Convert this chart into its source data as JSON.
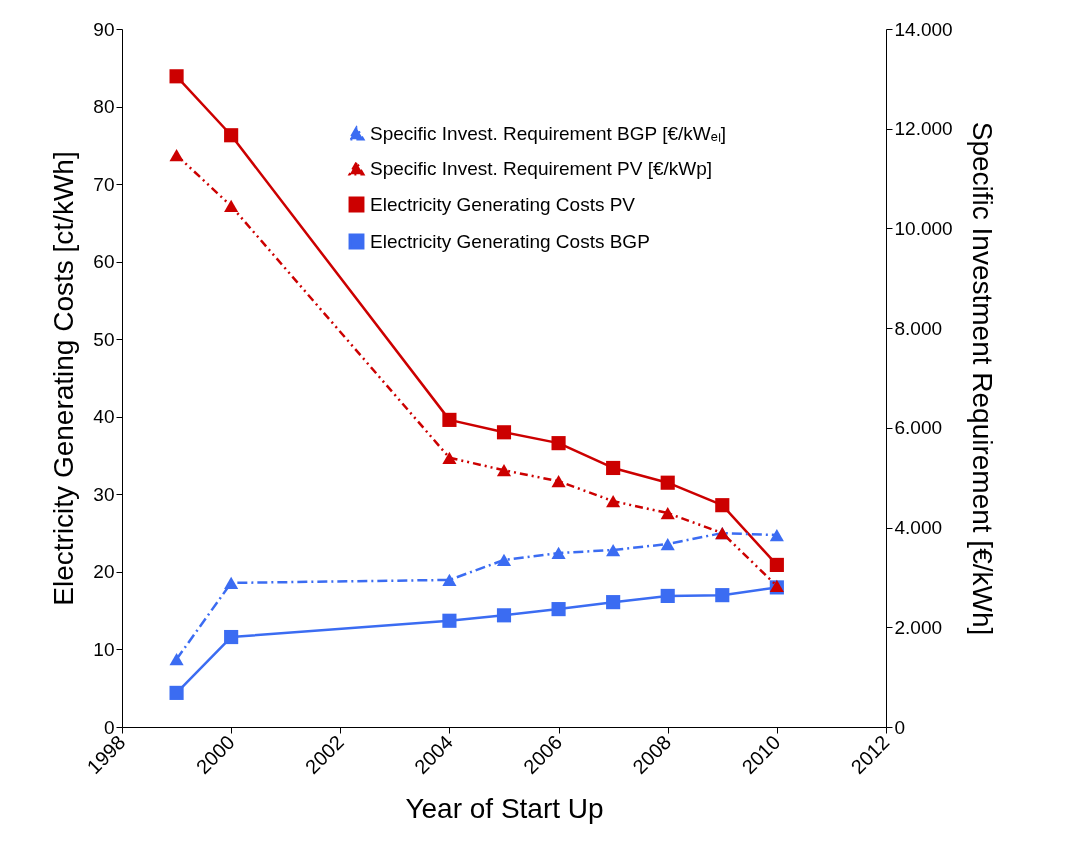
{
  "chart_data": {
    "type": "line",
    "xlabel": "Year of Start Up",
    "ylabel": "Electricity Generating Costs [ct/kWh]",
    "y2label": "Specific Investment Requirement [€/kWh]",
    "x": [
      1999,
      2000,
      2004,
      2005,
      2006,
      2007,
      2008,
      2009,
      2010
    ],
    "series": [
      {
        "name": "Specific Invest. Requirement BGP [€/kWₑₗ]",
        "color": "#3b6cf2",
        "axis": "y2",
        "marker": "triangle",
        "line_style": "dashed",
        "values": [
          1360,
          2890,
          2950,
          3350,
          3490,
          3550,
          3670,
          3890,
          3850
        ]
      },
      {
        "name": "Specific Invest. Requirement PV [€/kWp]",
        "color": "#cc0000",
        "axis": "y2",
        "marker": "triangle",
        "line_style": "dotted",
        "values": [
          11470,
          10450,
          5400,
          5150,
          4930,
          4530,
          4290,
          3890,
          2830
        ]
      },
      {
        "name": "Electricity Generating Costs PV",
        "color": "#cc0000",
        "axis": "y",
        "marker": "square",
        "line_style": "solid",
        "values": [
          83.9,
          76.3,
          39.6,
          38.0,
          36.6,
          33.4,
          31.5,
          28.6,
          20.9
        ]
      },
      {
        "name": "Electricity Generating Costs BGP",
        "color": "#3b6cf2",
        "axis": "y",
        "marker": "square",
        "line_style": "solid",
        "values": [
          4.4,
          11.6,
          13.7,
          14.4,
          15.2,
          16.1,
          16.9,
          17.0,
          18.0
        ]
      }
    ],
    "xlim": [
      1998,
      2012
    ],
    "xticks": [
      1998,
      2000,
      2002,
      2004,
      2006,
      2008,
      2010,
      2012
    ],
    "ylim": [
      0,
      90
    ],
    "yticks": [
      0,
      10,
      20,
      30,
      40,
      50,
      60,
      70,
      80,
      90
    ],
    "y2lim": [
      0,
      14000
    ],
    "y2ticks": [
      0,
      {
        "value": 2000,
        "label": "2.000"
      },
      {
        "value": 4000,
        "label": "4.000"
      },
      {
        "value": 6000,
        "label": "6.000"
      },
      {
        "value": 8000,
        "label": "8.000"
      },
      {
        "value": 10000,
        "label": "10.000"
      },
      {
        "value": 12000,
        "label": "12.000"
      },
      {
        "value": 14000,
        "label": "14.000"
      }
    ],
    "grid": false,
    "legend": "top right"
  }
}
